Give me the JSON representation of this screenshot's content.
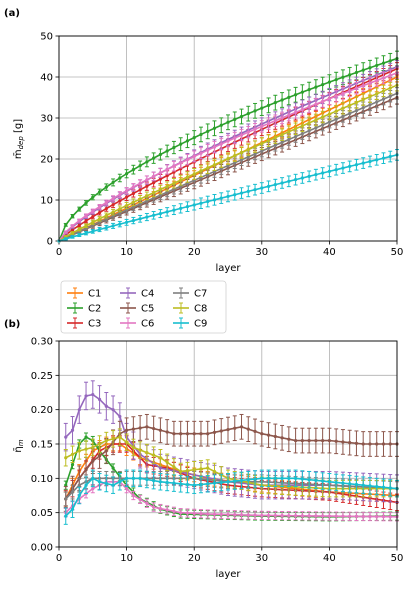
{
  "chart_data": [
    {
      "type": "line",
      "panel_label": "(a)",
      "xlabel": "layer",
      "ylabel": "m̄_dep [g]",
      "xlim": [
        0,
        50
      ],
      "ylim": [
        0,
        50
      ],
      "xticks": [
        "0",
        "10",
        "20",
        "30",
        "40",
        "50"
      ],
      "yticks": [
        "0",
        "10",
        "20",
        "30",
        "40",
        "50"
      ],
      "grid": true,
      "error_bars": true,
      "x": [
        0,
        1,
        2,
        3,
        4,
        5,
        6,
        7,
        8,
        9,
        10,
        11,
        12,
        13,
        14,
        15,
        16,
        17,
        18,
        19,
        20,
        21,
        22,
        23,
        24,
        25,
        26,
        27,
        28,
        29,
        30,
        31,
        32,
        33,
        34,
        35,
        36,
        37,
        38,
        39,
        40,
        41,
        42,
        43,
        44,
        45,
        46,
        47,
        48,
        49,
        50
      ],
      "series": [
        {
          "name": "C1",
          "color": "#ff7f0e",
          "shape": "pow",
          "end": 40,
          "k": 1,
          "err": 1.2
        },
        {
          "name": "C2",
          "color": "#2ca02c",
          "shape": "pow",
          "end": 44.5,
          "k": 0.62,
          "err": 1.8
        },
        {
          "name": "C3",
          "color": "#d62728",
          "shape": "pow",
          "end": 42,
          "k": 0.85,
          "err": 1.5
        },
        {
          "name": "C4",
          "color": "#9467bd",
          "shape": "pow",
          "end": 42.5,
          "k": 0.78,
          "err": 1.5
        },
        {
          "name": "C5",
          "color": "#8c564b",
          "shape": "pow",
          "end": 35,
          "k": 0.98,
          "err": 1.6
        },
        {
          "name": "C6",
          "color": "#e377c2",
          "shape": "pow",
          "end": 41,
          "k": 0.75,
          "err": 1.4
        },
        {
          "name": "C7",
          "color": "#7f7f7f",
          "shape": "pow",
          "end": 36,
          "k": 0.97,
          "err": 1.4
        },
        {
          "name": "C8",
          "color": "#bcbd22",
          "shape": "pow",
          "end": 38,
          "k": 0.92,
          "err": 1.4
        },
        {
          "name": "C9",
          "color": "#17becf",
          "shape": "pow",
          "end": 21,
          "k": 0.95,
          "err": 1.3
        }
      ]
    },
    {
      "type": "line",
      "panel_label": "(b)",
      "xlabel": "layer",
      "ylabel": "η̄_m",
      "xlim": [
        0,
        50
      ],
      "ylim": [
        0,
        0.3
      ],
      "xticks": [
        "0",
        "10",
        "20",
        "30",
        "40",
        "50"
      ],
      "yticks": [
        "0.00",
        "0.05",
        "0.10",
        "0.15",
        "0.20",
        "0.25",
        "0.30"
      ],
      "grid": true,
      "error_bars": true,
      "legend": {
        "placement": "above-plot",
        "columns": 3
      },
      "x": [
        1,
        2,
        3,
        4,
        5,
        6,
        7,
        8,
        9,
        10,
        11,
        12,
        13,
        14,
        15,
        16,
        17,
        18,
        19,
        20,
        21,
        22,
        23,
        24,
        25,
        26,
        27,
        28,
        29,
        30,
        31,
        32,
        33,
        34,
        35,
        36,
        37,
        38,
        39,
        40,
        41,
        42,
        43,
        44,
        45,
        46,
        47,
        48,
        49,
        50
      ],
      "series": [
        {
          "name": "C1",
          "color": "#ff7f0e",
          "err": 0.01,
          "keys": [
            [
              1,
              0.07
            ],
            [
              3,
              0.11
            ],
            [
              5,
              0.14
            ],
            [
              7,
              0.15
            ],
            [
              9,
              0.15
            ],
            [
              12,
              0.13
            ],
            [
              15,
              0.12
            ],
            [
              18,
              0.11
            ],
            [
              22,
              0.1
            ],
            [
              30,
              0.09
            ],
            [
              40,
              0.08
            ],
            [
              50,
              0.075
            ]
          ]
        },
        {
          "name": "C2",
          "color": "#2ca02c",
          "err": 0.006,
          "keys": [
            [
              1,
              0.09
            ],
            [
              2,
              0.12
            ],
            [
              3,
              0.15
            ],
            [
              4,
              0.16
            ],
            [
              5,
              0.155
            ],
            [
              6,
              0.14
            ],
            [
              8,
              0.115
            ],
            [
              10,
              0.09
            ],
            [
              12,
              0.07
            ],
            [
              15,
              0.055
            ],
            [
              18,
              0.048
            ],
            [
              22,
              0.047
            ],
            [
              30,
              0.045
            ],
            [
              40,
              0.044
            ],
            [
              50,
              0.045
            ]
          ]
        },
        {
          "name": "C3",
          "color": "#d62728",
          "err": 0.012,
          "keys": [
            [
              1,
              0.07
            ],
            [
              3,
              0.1
            ],
            [
              6,
              0.14
            ],
            [
              8,
              0.15
            ],
            [
              10,
              0.15
            ],
            [
              13,
              0.12
            ],
            [
              16,
              0.115
            ],
            [
              20,
              0.1
            ],
            [
              25,
              0.09
            ],
            [
              30,
              0.085
            ],
            [
              40,
              0.08
            ],
            [
              50,
              0.065
            ]
          ]
        },
        {
          "name": "C4",
          "color": "#9467bd",
          "err": 0.02,
          "keys": [
            [
              1,
              0.16
            ],
            [
              2,
              0.17
            ],
            [
              3,
              0.2
            ],
            [
              4,
              0.22
            ],
            [
              5,
              0.222
            ],
            [
              6,
              0.215
            ],
            [
              7,
              0.205
            ],
            [
              8,
              0.2
            ],
            [
              9,
              0.19
            ],
            [
              10,
              0.16
            ],
            [
              12,
              0.135
            ],
            [
              15,
              0.115
            ],
            [
              20,
              0.105
            ],
            [
              25,
              0.095
            ],
            [
              30,
              0.09
            ],
            [
              40,
              0.09
            ],
            [
              50,
              0.085
            ]
          ]
        },
        {
          "name": "C5",
          "color": "#8c564b",
          "err": 0.018,
          "keys": [
            [
              1,
              0.07
            ],
            [
              3,
              0.1
            ],
            [
              5,
              0.125
            ],
            [
              7,
              0.14
            ],
            [
              9,
              0.165
            ],
            [
              10,
              0.17
            ],
            [
              13,
              0.175
            ],
            [
              17,
              0.165
            ],
            [
              22,
              0.165
            ],
            [
              27,
              0.175
            ],
            [
              30,
              0.165
            ],
            [
              35,
              0.155
            ],
            [
              40,
              0.155
            ],
            [
              45,
              0.15
            ],
            [
              50,
              0.15
            ]
          ]
        },
        {
          "name": "C6",
          "color": "#e377c2",
          "err": 0.006,
          "keys": [
            [
              1,
              0.05
            ],
            [
              3,
              0.07
            ],
            [
              5,
              0.085
            ],
            [
              7,
              0.095
            ],
            [
              9,
              0.095
            ],
            [
              11,
              0.075
            ],
            [
              14,
              0.058
            ],
            [
              18,
              0.05
            ],
            [
              22,
              0.048
            ],
            [
              30,
              0.046
            ],
            [
              40,
              0.045
            ],
            [
              50,
              0.044
            ]
          ]
        },
        {
          "name": "C7",
          "color": "#7f7f7f",
          "err": 0.01,
          "keys": [
            [
              1,
              0.07
            ],
            [
              3,
              0.09
            ],
            [
              5,
              0.1
            ],
            [
              10,
              0.1
            ],
            [
              15,
              0.1
            ],
            [
              20,
              0.1
            ],
            [
              25,
              0.095
            ],
            [
              30,
              0.095
            ],
            [
              40,
              0.09
            ],
            [
              50,
              0.085
            ]
          ]
        },
        {
          "name": "C8",
          "color": "#bcbd22",
          "err": 0.012,
          "keys": [
            [
              1,
              0.13
            ],
            [
              3,
              0.14
            ],
            [
              5,
              0.145
            ],
            [
              7,
              0.155
            ],
            [
              9,
              0.16
            ],
            [
              11,
              0.145
            ],
            [
              15,
              0.13
            ],
            [
              18,
              0.11
            ],
            [
              22,
              0.115
            ],
            [
              25,
              0.1
            ],
            [
              30,
              0.09
            ],
            [
              40,
              0.085
            ],
            [
              50,
              0.085
            ]
          ]
        },
        {
          "name": "C9",
          "color": "#17becf",
          "err": 0.012,
          "keys": [
            [
              1,
              0.045
            ],
            [
              2,
              0.055
            ],
            [
              3,
              0.075
            ],
            [
              4,
              0.09
            ],
            [
              5,
              0.1
            ],
            [
              6,
              0.095
            ],
            [
              8,
              0.09
            ],
            [
              10,
              0.1
            ],
            [
              12,
              0.1
            ],
            [
              15,
              0.095
            ],
            [
              20,
              0.09
            ],
            [
              25,
              0.095
            ],
            [
              30,
              0.1
            ],
            [
              35,
              0.1
            ],
            [
              40,
              0.095
            ],
            [
              45,
              0.09
            ],
            [
              50,
              0.085
            ]
          ]
        }
      ]
    }
  ]
}
